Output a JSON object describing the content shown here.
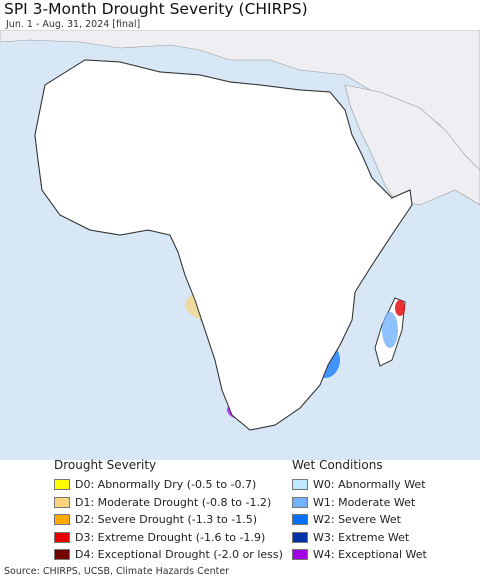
{
  "title": "SPI 3-Month Drought Severity (CHIRPS)",
  "subtitle": "Jun. 1 - Aug. 31, 2024 [final]",
  "source": "Source: CHIRPS, UCSB, Climate Hazards Center",
  "colors": {
    "ocean": "#d8e7f5",
    "land_outside": "#efeff3",
    "africa_land": "#ffffff",
    "border": "#333333"
  },
  "legend": {
    "drought": {
      "heading": "Drought Severity",
      "items": [
        {
          "code": "D0",
          "label": "D0: Abnormally Dry (-0.5 to -0.7)",
          "color": "#ffff00"
        },
        {
          "code": "D1",
          "label": "D1: Moderate Drought (-0.8 to -1.2)",
          "color": "#fcd37f"
        },
        {
          "code": "D2",
          "label": "D2: Severe Drought (-1.3 to -1.5)",
          "color": "#ffaa00"
        },
        {
          "code": "D3",
          "label": "D3: Extreme Drought (-1.6 to -1.9)",
          "color": "#e60000"
        },
        {
          "code": "D4",
          "label": "D4: Exceptional Drought (-2.0 or less)",
          "color": "#730000"
        }
      ]
    },
    "wet": {
      "heading": "Wet Conditions",
      "items": [
        {
          "code": "W0",
          "label": "W0: Abnormally Wet",
          "color": "#bee8ff"
        },
        {
          "code": "W1",
          "label": "W1: Moderate Wet",
          "color": "#73b2ff"
        },
        {
          "code": "W2",
          "label": "W2: Severe Wet",
          "color": "#0070ff"
        },
        {
          "code": "W3",
          "label": "W3: Extreme Wet",
          "color": "#0033aa"
        },
        {
          "code": "W4",
          "label": "W4: Exceptional Wet",
          "color": "#a100e6"
        }
      ]
    }
  }
}
